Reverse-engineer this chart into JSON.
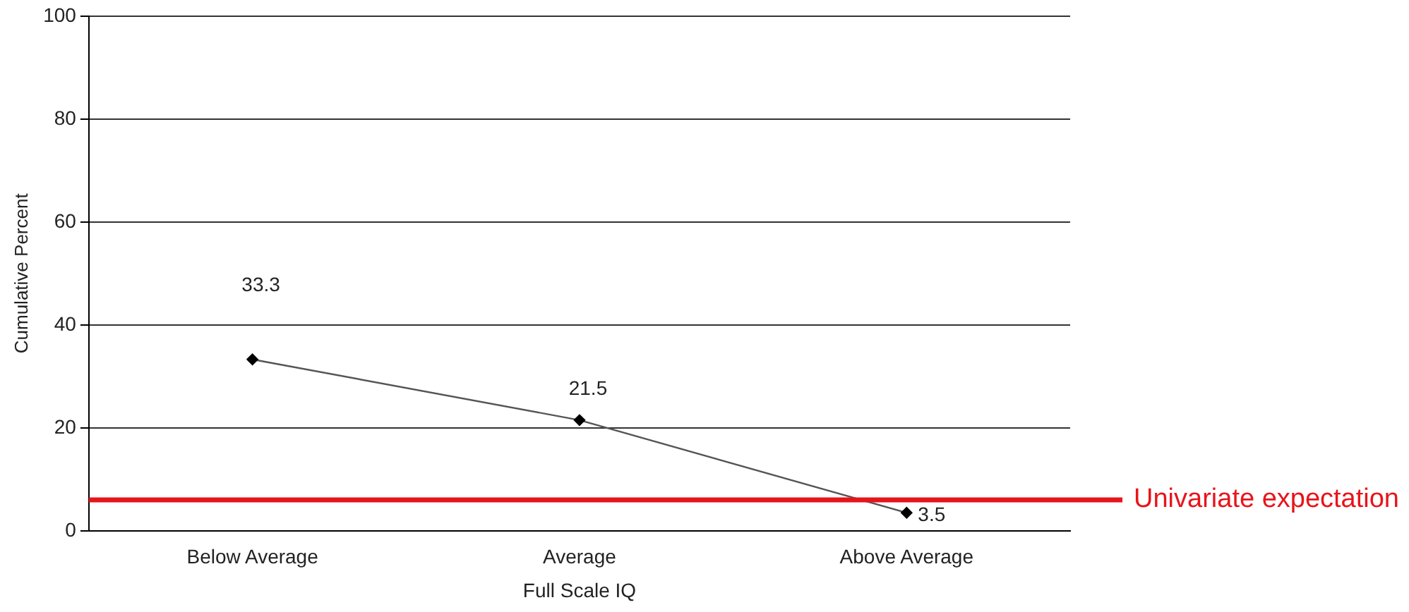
{
  "chart_data": {
    "type": "line",
    "xlabel": "Full Scale IQ",
    "ylabel": "Cumulative Percent",
    "categories": [
      "Below Average",
      "Average",
      "Above Average"
    ],
    "series": [
      {
        "color": "#555555",
        "values": [
          33.3,
          21.5,
          3.5
        ]
      }
    ],
    "ylim": [
      0,
      100
    ],
    "yticks": [
      0,
      20,
      40,
      60,
      80,
      100
    ],
    "grid": "y",
    "legend": false,
    "marker": "diamond",
    "line_style": "solid",
    "data_labels": true,
    "ref_lines": [
      {
        "axis": "y",
        "value": 6,
        "label": "Univariate expectation",
        "color": "#e8141b"
      }
    ]
  }
}
